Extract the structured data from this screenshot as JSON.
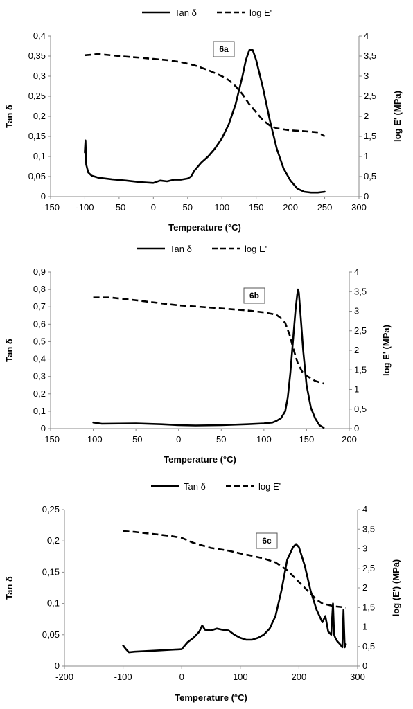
{
  "chart_data": [
    {
      "type": "line",
      "panel_label": "6a",
      "xlabel": "Temperature (°C)",
      "ylabel": "Tan δ",
      "y2label": "log E' (MPa)",
      "xlim": [
        -150,
        300
      ],
      "xticks": [
        -150,
        -100,
        -50,
        0,
        50,
        100,
        150,
        200,
        250,
        300
      ],
      "xtick_labels": [
        "-150",
        "-100",
        "-50",
        "0",
        "50",
        "100",
        "150",
        "200",
        "250",
        "300"
      ],
      "ylim": [
        0,
        0.4
      ],
      "yticks": [
        0,
        0.05,
        0.1,
        0.15,
        0.2,
        0.25,
        0.3,
        0.35,
        0.4
      ],
      "ytick_labels": [
        "0",
        "0,05",
        "0,1",
        "0,15",
        "0,2",
        "0,25",
        "0,3",
        "0,35",
        "0,4"
      ],
      "y2lim": [
        0,
        4
      ],
      "y2ticks": [
        0,
        0.5,
        1,
        1.5,
        2,
        2.5,
        3,
        3.5,
        4
      ],
      "y2tick_labels": [
        "0",
        "0,5",
        "1",
        "1,5",
        "2",
        "2,5",
        "3",
        "3,5",
        "4"
      ],
      "legend_position": "top",
      "series": [
        {
          "name": "Tan δ",
          "axis": "left",
          "style": "solid",
          "x": [
            -100,
            -99,
            -98,
            -95,
            -90,
            -80,
            -60,
            -40,
            -20,
            -10,
            0,
            10,
            20,
            30,
            40,
            50,
            55,
            60,
            70,
            80,
            90,
            100,
            110,
            120,
            130,
            135,
            140,
            145,
            150,
            160,
            170,
            180,
            190,
            200,
            210,
            220,
            230,
            240,
            250
          ],
          "y": [
            0.11,
            0.14,
            0.08,
            0.06,
            0.052,
            0.047,
            0.043,
            0.04,
            0.036,
            0.035,
            0.034,
            0.04,
            0.038,
            0.042,
            0.042,
            0.045,
            0.05,
            0.065,
            0.085,
            0.1,
            0.12,
            0.145,
            0.18,
            0.23,
            0.3,
            0.34,
            0.365,
            0.365,
            0.34,
            0.27,
            0.19,
            0.12,
            0.07,
            0.04,
            0.02,
            0.012,
            0.01,
            0.01,
            0.012
          ]
        },
        {
          "name": "log E'",
          "axis": "right",
          "style": "dashed",
          "x": [
            -100,
            -80,
            -50,
            -20,
            0,
            20,
            40,
            60,
            80,
            100,
            110,
            120,
            130,
            140,
            150,
            160,
            170,
            180,
            200,
            220,
            240,
            250
          ],
          "y": [
            3.52,
            3.55,
            3.5,
            3.46,
            3.43,
            3.4,
            3.35,
            3.27,
            3.15,
            3.0,
            2.9,
            2.75,
            2.55,
            2.3,
            2.1,
            1.9,
            1.77,
            1.7,
            1.65,
            1.63,
            1.6,
            1.5
          ]
        }
      ]
    },
    {
      "type": "line",
      "panel_label": "6b",
      "xlabel": "Temperature (°C)",
      "ylabel": "Tan δ",
      "y2label": "log E' (MPa)",
      "xlim": [
        -150,
        200
      ],
      "xticks": [
        -150,
        -100,
        -50,
        0,
        50,
        100,
        150,
        200
      ],
      "xtick_labels": [
        "-150",
        "-100",
        "-50",
        "0",
        "50",
        "100",
        "150",
        "200"
      ],
      "ylim": [
        0,
        0.9
      ],
      "yticks": [
        0,
        0.1,
        0.2,
        0.3,
        0.4,
        0.5,
        0.6,
        0.7,
        0.8,
        0.9
      ],
      "ytick_labels": [
        "0",
        "0,1",
        "0,2",
        "0,3",
        "0,4",
        "0,5",
        "0,6",
        "0,7",
        "0,8",
        "0,9"
      ],
      "y2lim": [
        0,
        4
      ],
      "y2ticks": [
        0,
        0.5,
        1,
        1.5,
        2,
        2.5,
        3,
        3.5,
        4
      ],
      "y2tick_labels": [
        "0",
        "0,5",
        "1",
        "1,5",
        "2",
        "2,5",
        "3",
        "3,5",
        "4"
      ],
      "legend_position": "top",
      "series": [
        {
          "name": "Tan δ",
          "axis": "left",
          "style": "solid",
          "x": [
            -100,
            -90,
            -50,
            -20,
            0,
            20,
            50,
            80,
            100,
            110,
            115,
            120,
            125,
            128,
            131,
            134,
            137,
            139,
            140,
            141,
            143,
            146,
            150,
            155,
            160,
            165,
            170
          ],
          "y": [
            0.035,
            0.028,
            0.03,
            0.025,
            0.02,
            0.018,
            0.02,
            0.025,
            0.03,
            0.035,
            0.045,
            0.06,
            0.1,
            0.18,
            0.32,
            0.5,
            0.68,
            0.77,
            0.8,
            0.78,
            0.65,
            0.45,
            0.25,
            0.12,
            0.06,
            0.02,
            0.005
          ]
        },
        {
          "name": "log E'",
          "axis": "right",
          "style": "dashed",
          "x": [
            -100,
            -80,
            -50,
            -20,
            0,
            20,
            50,
            80,
            100,
            110,
            115,
            120,
            125,
            130,
            135,
            140,
            145,
            150,
            160,
            170
          ],
          "y": [
            3.35,
            3.35,
            3.28,
            3.2,
            3.15,
            3.12,
            3.07,
            3.02,
            2.97,
            2.93,
            2.9,
            2.82,
            2.7,
            2.4,
            2.0,
            1.65,
            1.45,
            1.35,
            1.22,
            1.15
          ]
        }
      ]
    },
    {
      "type": "line",
      "panel_label": "6c",
      "xlabel": "Temperature (°C)",
      "ylabel": "Tan δ",
      "y2label": "log (E') (MPa)",
      "xlim": [
        -200,
        300
      ],
      "xticks": [
        -200,
        -100,
        0,
        100,
        200,
        300
      ],
      "xtick_labels": [
        "-200",
        "-100",
        "0",
        "100",
        "200",
        "300"
      ],
      "ylim": [
        0,
        0.25
      ],
      "yticks": [
        0,
        0.05,
        0.1,
        0.15,
        0.2,
        0.25
      ],
      "ytick_labels": [
        "0",
        "0,05",
        "0,1",
        "0,15",
        "0,2",
        "0,25"
      ],
      "y2lim": [
        0,
        4
      ],
      "y2ticks": [
        0,
        0.5,
        1,
        1.5,
        2,
        2.5,
        3,
        3.5,
        4
      ],
      "y2tick_labels": [
        "0",
        "0,5",
        "1",
        "1,5",
        "2",
        "2,5",
        "3",
        "3,5",
        "4"
      ],
      "legend_position": "top",
      "series": [
        {
          "name": "Tan δ",
          "axis": "left",
          "style": "solid",
          "x": [
            -100,
            -95,
            -90,
            -80,
            -60,
            -40,
            -20,
            0,
            10,
            20,
            30,
            35,
            40,
            50,
            60,
            70,
            80,
            90,
            100,
            110,
            120,
            130,
            140,
            150,
            160,
            170,
            180,
            190,
            195,
            200,
            210,
            220,
            230,
            240,
            245,
            250,
            255,
            258,
            260,
            262,
            265,
            270,
            274,
            276,
            278,
            280
          ],
          "y": [
            0.033,
            0.027,
            0.022,
            0.023,
            0.024,
            0.025,
            0.026,
            0.027,
            0.038,
            0.045,
            0.055,
            0.065,
            0.058,
            0.057,
            0.06,
            0.058,
            0.057,
            0.05,
            0.045,
            0.042,
            0.042,
            0.045,
            0.05,
            0.06,
            0.08,
            0.12,
            0.17,
            0.19,
            0.195,
            0.19,
            0.16,
            0.12,
            0.09,
            0.07,
            0.08,
            0.055,
            0.05,
            0.1,
            0.05,
            0.045,
            0.04,
            0.035,
            0.03,
            0.09,
            0.03,
            0.035
          ]
        },
        {
          "name": "log E'",
          "axis": "right",
          "style": "dashed",
          "x": [
            -100,
            -80,
            -50,
            -20,
            0,
            20,
            50,
            80,
            100,
            120,
            140,
            160,
            170,
            180,
            190,
            200,
            210,
            220,
            230,
            240,
            260,
            280
          ],
          "y": [
            3.45,
            3.43,
            3.38,
            3.33,
            3.28,
            3.15,
            3.02,
            2.95,
            2.88,
            2.82,
            2.75,
            2.65,
            2.55,
            2.45,
            2.3,
            2.15,
            2.0,
            1.85,
            1.7,
            1.6,
            1.53,
            1.5
          ]
        }
      ]
    }
  ]
}
